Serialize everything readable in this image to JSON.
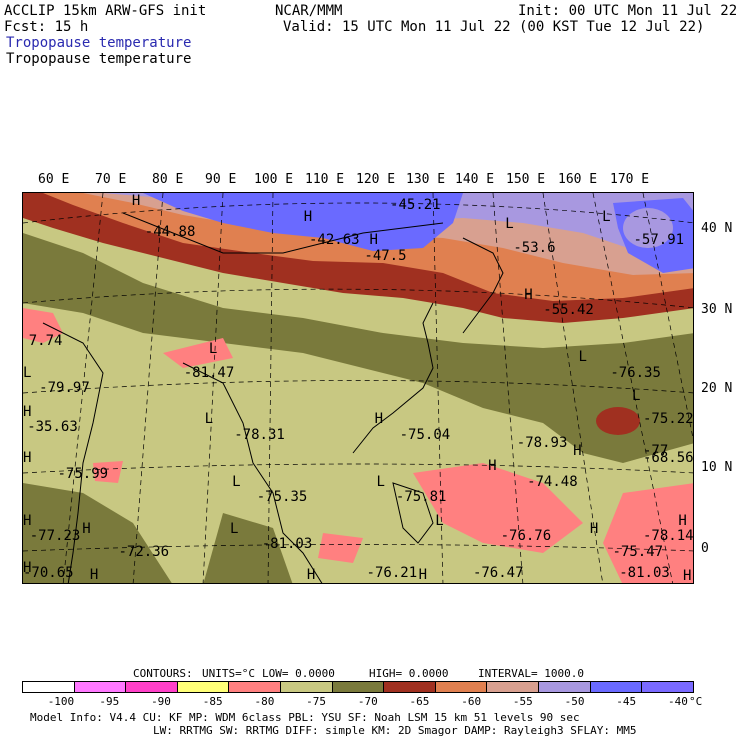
{
  "header": {
    "model": "ACCLIP 15km ARW-GFS init",
    "org": "NCAR/MMM",
    "init": "Init: 00 UTC Mon 11 Jul 22",
    "fcst": "Fcst:   15 h",
    "valid": "Valid: 15 UTC Mon 11 Jul 22 (00 KST Tue 12 Jul 22)",
    "field1": "Tropopause temperature",
    "field2": "Tropopause temperature"
  },
  "map": {
    "lon_labels": [
      "60 E",
      "70 E",
      "80 E",
      "90 E",
      "100 E",
      "110 E",
      "120 E",
      "130 E",
      "140 E",
      "150 E",
      "160 E",
      "170 E"
    ],
    "lat_labels": [
      "40 N",
      "30 N",
      "20 N",
      "10 N",
      "0"
    ],
    "values": [
      {
        "text": "-45.21",
        "lon": 123,
        "lat": 45.5
      },
      {
        "text": "-44.88",
        "lon": 78,
        "lat": 42
      },
      {
        "text": "-42.63",
        "lon": 108,
        "lat": 41
      },
      {
        "text": "-47.5",
        "lon": 118,
        "lat": 39
      },
      {
        "text": "-53.6",
        "lon": 145,
        "lat": 40
      },
      {
        "text": "-57.91",
        "lon": 167,
        "lat": 41
      },
      {
        "text": "-55.42",
        "lon": 149,
        "lat": 32
      },
      {
        "text": "7.74",
        "lon": 60,
        "lat": 28
      },
      {
        "text": "-81.47",
        "lon": 87,
        "lat": 24
      },
      {
        "text": "-79.97",
        "lon": 63,
        "lat": 22
      },
      {
        "text": "-76.35",
        "lon": 159,
        "lat": 24
      },
      {
        "text": "-75.22",
        "lon": 171,
        "lat": 18
      },
      {
        "text": "-35.63",
        "lon": 62,
        "lat": 17
      },
      {
        "text": "-78.31",
        "lon": 96,
        "lat": 16
      },
      {
        "text": "-75.04",
        "lon": 123,
        "lat": 16
      },
      {
        "text": "-78.93",
        "lon": 142,
        "lat": 15
      },
      {
        "text": "-68.56",
        "lon": 164,
        "lat": 13
      },
      {
        "text": "-77",
        "lon": 176,
        "lat": 14
      },
      {
        "text": "-75.99",
        "lon": 68,
        "lat": 11
      },
      {
        "text": "-74.48",
        "lon": 143,
        "lat": 10
      },
      {
        "text": "-75.35",
        "lon": 100,
        "lat": 8
      },
      {
        "text": "-75.81",
        "lon": 122,
        "lat": 8
      },
      {
        "text": "-77.23",
        "lon": 65,
        "lat": 3
      },
      {
        "text": "-81.03",
        "lon": 101,
        "lat": 2
      },
      {
        "text": "-76.76",
        "lon": 138,
        "lat": 3
      },
      {
        "text": "-78.14",
        "lon": 172,
        "lat": 3
      },
      {
        "text": "-72.36",
        "lon": 79,
        "lat": 1
      },
      {
        "text": "-75.47",
        "lon": 155,
        "lat": 1
      },
      {
        "text": "-70.65",
        "lon": 61,
        "lat": -3
      },
      {
        "text": "-76.21",
        "lon": 117,
        "lat": -5
      },
      {
        "text": "-76.47",
        "lon": 133,
        "lat": -5
      },
      {
        "text": "-81.03",
        "lon": 155,
        "lat": -5
      }
    ],
    "markers": [
      {
        "text": "H",
        "lon": 75,
        "lat": 46
      },
      {
        "text": "H",
        "lon": 107,
        "lat": 44
      },
      {
        "text": "H",
        "lon": 119,
        "lat": 41
      },
      {
        "text": "L",
        "lon": 144,
        "lat": 43
      },
      {
        "text": "L",
        "lon": 162,
        "lat": 44
      },
      {
        "text": "H",
        "lon": 146,
        "lat": 34
      },
      {
        "text": "L",
        "lon": 91,
        "lat": 27
      },
      {
        "text": "L",
        "lon": 59,
        "lat": 24
      },
      {
        "text": "H",
        "lon": 58,
        "lat": 19
      },
      {
        "text": "L",
        "lon": 91,
        "lat": 18
      },
      {
        "text": "H",
        "lon": 119,
        "lat": 18
      },
      {
        "text": "L",
        "lon": 154,
        "lat": 26
      },
      {
        "text": "L",
        "lon": 162,
        "lat": 21
      },
      {
        "text": "H",
        "lon": 151,
        "lat": 14
      },
      {
        "text": "H",
        "lon": 137,
        "lat": 12
      },
      {
        "text": "H",
        "lon": 61,
        "lat": 13
      },
      {
        "text": "L",
        "lon": 96,
        "lat": 10
      },
      {
        "text": "L",
        "lon": 119,
        "lat": 10
      },
      {
        "text": "H",
        "lon": 55,
        "lat": 5
      },
      {
        "text": "H",
        "lon": 73,
        "lat": 4
      },
      {
        "text": "L",
        "lon": 96,
        "lat": 4
      },
      {
        "text": "L",
        "lon": 128,
        "lat": 5
      },
      {
        "text": "H",
        "lon": 152,
        "lat": 4
      },
      {
        "text": "H",
        "lon": 166,
        "lat": 5
      },
      {
        "text": "H",
        "lon": 56,
        "lat": -1
      },
      {
        "text": "H",
        "lon": 75,
        "lat": -2
      },
      {
        "text": "H",
        "lon": 108,
        "lat": -2
      },
      {
        "text": "H",
        "lon": 125,
        "lat": -2
      },
      {
        "text": "H",
        "lon": 168,
        "lat": -3
      }
    ]
  },
  "contours": {
    "label": "CONTOURS:",
    "units": "UNITS=°C",
    "low": "LOW=  0.0000",
    "high": "HIGH=  0.0000",
    "interval": "INTERVAL=    1000.0"
  },
  "colorbar": {
    "colors": [
      "#ffffff",
      "#ff78ff",
      "#ff40c8",
      "#ffff78",
      "#ff8080",
      "#c8c882",
      "#7a7a3c",
      "#a03020",
      "#e08050",
      "#d8a090",
      "#a898e0",
      "#6a6aff",
      "#7a6aff"
    ],
    "ticks": [
      "-100",
      "-95",
      "-90",
      "-85",
      "-80",
      "-75",
      "-70",
      "-65",
      "-60",
      "-55",
      "-50",
      "-45",
      "-40"
    ],
    "unit": "°C"
  },
  "model_info": {
    "line1": "Model Info: V4.4       CU: KF       MP: WDM 6class  PBL: YSU       SF: Noah LSM    15 km   51 levels   90 sec",
    "line2": "LW: RRTMG    SW: RRTMG   DIFF: simple KM: 2D Smagor DAMP: Rayleigh3  SFLAY: MM5"
  }
}
